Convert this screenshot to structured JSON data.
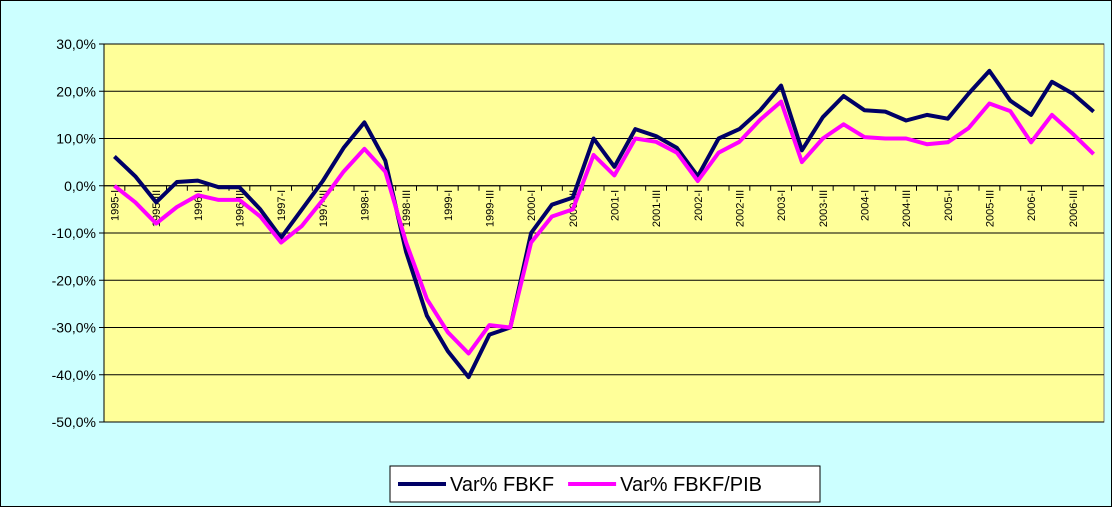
{
  "chart_data": {
    "type": "line",
    "categories": [
      "1995-I",
      null,
      "1995-III",
      null,
      "1996-I",
      null,
      "1996-III",
      null,
      "1997-I",
      null,
      "1997-III",
      null,
      "1998-I",
      null,
      "1998-III",
      null,
      "1999-I",
      null,
      "1999-III",
      null,
      "2000-I",
      null,
      "2000-III",
      null,
      "2001-I",
      null,
      "2001-III",
      null,
      "2002-I",
      null,
      "2002-III",
      null,
      "2003-I",
      null,
      "2003-III",
      null,
      "2004-I",
      null,
      "2004-III",
      null,
      "2005-I",
      null,
      "2005-III",
      null,
      "2006-I",
      null,
      "2006-III",
      null
    ],
    "series": [
      {
        "name": "Var% FBKF",
        "color": "#000066",
        "values": [
          6.2,
          2,
          -3.5,
          0.8,
          1.1,
          -0.3,
          -0.3,
          -5,
          -11,
          -5,
          1,
          8,
          13.4,
          5.3,
          -14,
          -27.5,
          -35,
          -40.5,
          -31.5,
          -30,
          -10,
          -4,
          -2.5,
          10,
          4,
          12,
          10.5,
          8,
          2,
          10,
          12,
          16,
          21.2,
          7.5,
          14.5,
          19,
          16,
          15.7,
          13.8,
          15,
          14.2,
          19.5,
          24.3,
          18,
          15,
          22,
          19.5,
          15.7
        ]
      },
      {
        "name": "Var% FBKF/PIB",
        "color": "#ff00ff",
        "values": [
          0,
          -3.5,
          -8,
          -4.5,
          -2,
          -3,
          -3,
          -6.5,
          -12,
          -8.5,
          -3,
          3,
          7.8,
          3,
          -12,
          -24,
          -31,
          -35.5,
          -29.5,
          -30,
          -12,
          -6.5,
          -5,
          6.5,
          2.2,
          10,
          9.3,
          7,
          1,
          7,
          9.3,
          14,
          17.8,
          5,
          10,
          13,
          10.3,
          10,
          10,
          8.8,
          9.2,
          12.2,
          17.4,
          15.8,
          9.2,
          15,
          11,
          6.7
        ]
      }
    ],
    "ylim": [
      -50,
      30
    ],
    "yticks": [
      {
        "value": 30,
        "label": "30,0%"
      },
      {
        "value": 20,
        "label": "20,0%"
      },
      {
        "value": 10,
        "label": "10,0%"
      },
      {
        "value": 0,
        "label": "0,0%"
      },
      {
        "value": -10,
        "label": "-10,0%"
      },
      {
        "value": -20,
        "label": "-20,0%"
      },
      {
        "value": -30,
        "label": "-30,0%"
      },
      {
        "value": -40,
        "label": "-40,0%"
      },
      {
        "value": -50,
        "label": "-50,0%"
      }
    ],
    "grid": true,
    "legend": "bottom"
  }
}
